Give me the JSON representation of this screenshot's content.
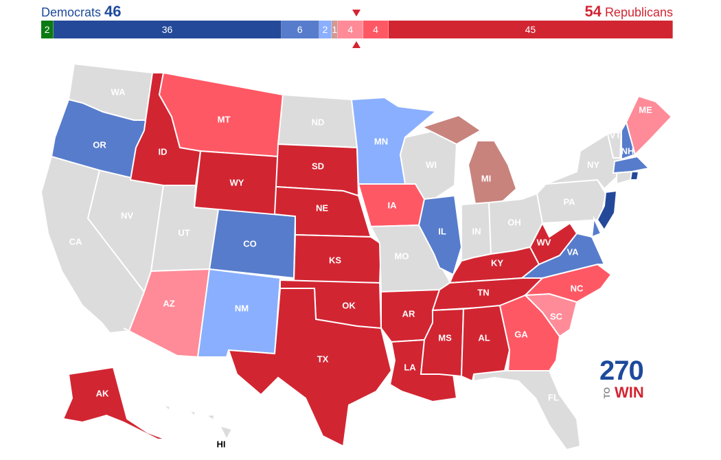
{
  "header": {
    "dem_label": "Democrats",
    "dem_total": "46",
    "rep_total": "54",
    "rep_label": "Republicans"
  },
  "balance_bar": [
    {
      "value": 2,
      "label": "2",
      "color": "#0b7a14"
    },
    {
      "value": 36,
      "label": "36",
      "color": "#244999"
    },
    {
      "value": 6,
      "label": "6",
      "color": "#577ccc"
    },
    {
      "value": 2,
      "label": "2",
      "color": "#8aaffe"
    },
    {
      "value": 1,
      "label": "1",
      "color": "#d09b95"
    },
    {
      "value": 4,
      "label": "4",
      "color": "#ff8b98"
    },
    {
      "value": 4,
      "label": "4",
      "color": "#ff5865"
    },
    {
      "value": 45,
      "label": "45",
      "color": "#d22532"
    }
  ],
  "colors": {
    "safe_d": "#244999",
    "likely_d": "#577ccc",
    "leans_d": "#8aaffe",
    "tilt_r": "#c8837d",
    "leans_r": "#ff8b98",
    "likely_r": "#ff5865",
    "safe_r": "#d22532",
    "none": "#dcdcdc",
    "ind": "#0b7a14"
  },
  "states": {
    "WA": "WA",
    "OR": "OR",
    "CA": "CA",
    "NV": "NV",
    "ID": "ID",
    "MT": "MT",
    "WY": "WY",
    "UT": "UT",
    "AZ": "AZ",
    "CO": "CO",
    "NM": "NM",
    "ND": "ND",
    "SD": "SD",
    "NE": "NE",
    "KS": "KS",
    "OK": "OK",
    "TX": "TX",
    "MN": "MN",
    "IA": "IA",
    "MO": "MO",
    "AR": "AR",
    "LA": "LA",
    "WI": "WI",
    "IL": "IL",
    "MI": "MI",
    "IN": "IN",
    "OH": "OH",
    "KY": "KY",
    "TN": "TN",
    "MS": "MS",
    "AL": "AL",
    "GA": "GA",
    "FL": "FL",
    "SC": "SC",
    "NC": "NC",
    "VA": "VA",
    "WV": "WV",
    "PA": "PA",
    "NY": "NY",
    "VT": "VT",
    "NH": "NH",
    "ME": "ME",
    "AK": "AK",
    "HI": "HI"
  },
  "logo": {
    "number": "270",
    "to": "TO",
    "win": "WIN"
  }
}
